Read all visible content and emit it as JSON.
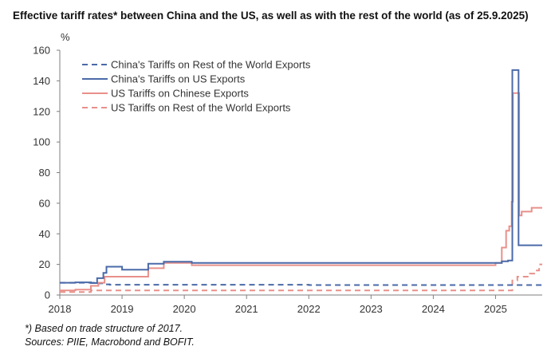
{
  "title": "Effective tariff rates* between China and the US, as well as with the rest of the world (as of 25.9.2025)",
  "notes": {
    "line1": "*) Based on trade structure of 2017.",
    "line2": "Sources: PIIE, Macrobond and BOFIT."
  },
  "chart_data": {
    "type": "line",
    "title": "Effective tariff rates* between China and the US, as well as with the rest of the world (as of 25.9.2025)",
    "ylabel": "%",
    "xlabel": "",
    "xlim": [
      2018,
      2025.75
    ],
    "ylim": [
      0,
      160
    ],
    "yticks": [
      0,
      20,
      40,
      60,
      80,
      100,
      120,
      140,
      160
    ],
    "xticks": [
      2018,
      2019,
      2020,
      2021,
      2022,
      2023,
      2024,
      2025
    ],
    "grid": false,
    "legend_position": "top-left",
    "series": [
      {
        "name": "China's Tariffs on Rest of the World Exports",
        "color": "#4a6aa8",
        "style": "dashed",
        "x": [
          2018,
          2018.35,
          2018.55,
          2018.7,
          2018.8,
          2021.5,
          2022.0,
          2025.0,
          2025.75
        ],
        "y": [
          8.0,
          8.0,
          7.6,
          7.0,
          6.7,
          6.7,
          6.5,
          6.5,
          6.5
        ]
      },
      {
        "name": "China's Tariffs on US Exports",
        "color": "#4a6aa8",
        "style": "solid",
        "x": [
          2018,
          2018.25,
          2018.5,
          2018.6,
          2018.7,
          2018.75,
          2019.0,
          2019.42,
          2019.67,
          2020.12,
          2025.0,
          2025.1,
          2025.2,
          2025.27,
          2025.37,
          2025.75
        ],
        "y": [
          8.0,
          8.3,
          7.8,
          11.0,
          14.5,
          18.5,
          16.5,
          20.5,
          21.8,
          21.0,
          21.0,
          22.0,
          22.5,
          147.0,
          32.5,
          32.5
        ]
      },
      {
        "name": "US Tariffs on Chinese Exports",
        "color": "#e8908a",
        "style": "solid",
        "x": [
          2018,
          2018.25,
          2018.5,
          2018.62,
          2018.72,
          2019.42,
          2019.67,
          2020.12,
          2025.0,
          2025.1,
          2025.17,
          2025.22,
          2025.26,
          2025.28,
          2025.38,
          2025.42,
          2025.58,
          2025.75
        ],
        "y": [
          3.0,
          3.5,
          6.0,
          8.0,
          12.0,
          17.5,
          21.0,
          19.5,
          21.0,
          31.0,
          42.0,
          45.0,
          61.0,
          132.0,
          52.0,
          54.5,
          57.0,
          57.0
        ]
      },
      {
        "name": "US Tariffs on Rest of the World Exports",
        "color": "#e8908a",
        "style": "dashed",
        "x": [
          2018,
          2018.5,
          2025.0,
          2025.2,
          2025.27,
          2025.35,
          2025.55,
          2025.62,
          2025.7,
          2025.75
        ],
        "y": [
          2.0,
          3.0,
          3.0,
          3.0,
          9.5,
          12.0,
          14.0,
          16.0,
          20.0,
          20.0
        ]
      }
    ]
  }
}
